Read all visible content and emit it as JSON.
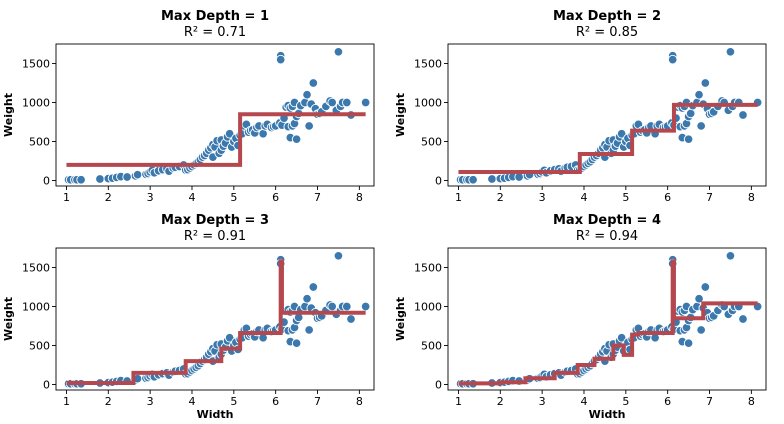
{
  "chart_data": [
    {
      "type": "scatter",
      "title": "Max Depth = 1",
      "subtitle": "R² = 0.71",
      "xlabel": "",
      "ylabel": "Weight",
      "xlim": [
        0.75,
        8.35
      ],
      "ylim": [
        -70,
        1750
      ],
      "xticks": [
        1,
        2,
        3,
        4,
        5,
        6,
        7,
        8
      ],
      "yticks": [
        0,
        500,
        1000,
        1500
      ],
      "step_fit": {
        "x": [
          1.0,
          5.15,
          5.15,
          8.15
        ],
        "y": [
          200,
          200,
          850,
          850
        ]
      }
    },
    {
      "type": "scatter",
      "title": "Max Depth = 2",
      "subtitle": "R² = 0.85",
      "xlabel": "",
      "ylabel": "Weight",
      "xlim": [
        0.75,
        8.35
      ],
      "ylim": [
        -70,
        1750
      ],
      "xticks": [
        1,
        2,
        3,
        4,
        5,
        6,
        7,
        8
      ],
      "yticks": [
        0,
        500,
        1000,
        1500
      ],
      "step_fit": {
        "x": [
          1.0,
          3.9,
          3.9,
          5.15,
          5.15,
          6.15,
          6.15,
          8.15
        ],
        "y": [
          110,
          110,
          340,
          340,
          640,
          640,
          970,
          970
        ]
      }
    },
    {
      "type": "scatter",
      "title": "Max Depth = 3",
      "subtitle": "R² = 0.91",
      "xlabel": "",
      "ylabel": "Weight",
      "xlim": [
        0.75,
        8.35
      ],
      "ylim": [
        -70,
        1750
      ],
      "xticks": [
        1,
        2,
        3,
        4,
        5,
        6,
        7,
        8
      ],
      "yticks": [
        0,
        500,
        1000,
        1500
      ],
      "step_fit": {
        "x": [
          1.0,
          2.6,
          2.6,
          3.85,
          3.85,
          4.7,
          4.7,
          5.15,
          5.15,
          6.12,
          6.12,
          6.15,
          6.15,
          8.15
        ],
        "y": [
          20,
          20,
          150,
          150,
          300,
          300,
          460,
          460,
          660,
          660,
          1580,
          1580,
          920,
          920
        ]
      }
    },
    {
      "type": "scatter",
      "title": "Max Depth = 4",
      "subtitle": "R² = 0.94",
      "xlabel": "Width",
      "ylabel": "Weight",
      "xlim": [
        0.75,
        8.35
      ],
      "ylim": [
        -70,
        1750
      ],
      "xticks": [
        1,
        2,
        3,
        4,
        5,
        6,
        7,
        8
      ],
      "yticks": [
        0,
        500,
        1000,
        1500
      ],
      "step_fit": {
        "x": [
          1.0,
          2.0,
          2.0,
          2.6,
          2.6,
          3.3,
          3.3,
          3.85,
          3.85,
          4.25,
          4.25,
          4.7,
          4.7,
          4.95,
          4.95,
          5.15,
          5.15,
          5.3,
          5.3,
          6.12,
          6.12,
          6.15,
          6.15,
          6.85,
          6.85,
          8.15
        ],
        "y": [
          15,
          15,
          30,
          30,
          80,
          80,
          150,
          150,
          250,
          250,
          330,
          330,
          500,
          500,
          380,
          380,
          640,
          640,
          660,
          660,
          1580,
          1580,
          850,
          850,
          1040,
          1040
        ]
      }
    }
  ],
  "scatter_points": [
    [
      1.05,
      10
    ],
    [
      1.1,
      10
    ],
    [
      1.2,
      10
    ],
    [
      1.25,
      10
    ],
    [
      1.35,
      10
    ],
    [
      1.8,
      20
    ],
    [
      2.0,
      25
    ],
    [
      2.1,
      30
    ],
    [
      2.2,
      40
    ],
    [
      2.3,
      50
    ],
    [
      2.45,
      45
    ],
    [
      2.65,
      60
    ],
    [
      2.7,
      75
    ],
    [
      2.9,
      80
    ],
    [
      2.95,
      90
    ],
    [
      3.0,
      110
    ],
    [
      3.05,
      130
    ],
    [
      3.1,
      100
    ],
    [
      3.2,
      125
    ],
    [
      3.3,
      140
    ],
    [
      3.4,
      150
    ],
    [
      3.45,
      120
    ],
    [
      3.55,
      160
    ],
    [
      3.6,
      170
    ],
    [
      3.7,
      180
    ],
    [
      3.8,
      200
    ],
    [
      3.85,
      135
    ],
    [
      3.9,
      140
    ],
    [
      3.95,
      160
    ],
    [
      4.0,
      180
    ],
    [
      4.05,
      200
    ],
    [
      4.1,
      220
    ],
    [
      4.15,
      240
    ],
    [
      4.2,
      270
    ],
    [
      4.25,
      300
    ],
    [
      4.3,
      320
    ],
    [
      4.35,
      350
    ],
    [
      4.4,
      390
    ],
    [
      4.45,
      420
    ],
    [
      4.5,
      300
    ],
    [
      4.5,
      460
    ],
    [
      4.55,
      430
    ],
    [
      4.6,
      510
    ],
    [
      4.65,
      350
    ],
    [
      4.7,
      390
    ],
    [
      4.7,
      520
    ],
    [
      4.75,
      440
    ],
    [
      4.8,
      480
    ],
    [
      4.85,
      560
    ],
    [
      4.9,
      600
    ],
    [
      4.95,
      430
    ],
    [
      5.0,
      500
    ],
    [
      5.05,
      540
    ],
    [
      5.1,
      450
    ],
    [
      5.15,
      580
    ],
    [
      5.2,
      600
    ],
    [
      5.25,
      700
    ],
    [
      5.3,
      720
    ],
    [
      5.35,
      620
    ],
    [
      5.4,
      640
    ],
    [
      5.45,
      650
    ],
    [
      5.5,
      610
    ],
    [
      5.55,
      680
    ],
    [
      5.6,
      700
    ],
    [
      5.7,
      600
    ],
    [
      5.75,
      700
    ],
    [
      5.8,
      720
    ],
    [
      5.9,
      680
    ],
    [
      5.95,
      690
    ],
    [
      6.0,
      700
    ],
    [
      6.1,
      740
    ],
    [
      6.12,
      1600
    ],
    [
      6.12,
      1550
    ],
    [
      6.15,
      710
    ],
    [
      6.2,
      800
    ],
    [
      6.25,
      940
    ],
    [
      6.3,
      960
    ],
    [
      6.35,
      930
    ],
    [
      6.4,
      950
    ],
    [
      6.45,
      1000
    ],
    [
      6.3,
      690
    ],
    [
      6.35,
      550
    ],
    [
      6.4,
      700
    ],
    [
      6.45,
      730
    ],
    [
      6.5,
      820
    ],
    [
      6.55,
      860
    ],
    [
      6.5,
      530
    ],
    [
      6.6,
      960
    ],
    [
      6.7,
      1000
    ],
    [
      6.75,
      1100
    ],
    [
      6.8,
      700
    ],
    [
      6.85,
      980
    ],
    [
      6.9,
      1250
    ],
    [
      6.95,
      920
    ],
    [
      7.0,
      850
    ],
    [
      7.05,
      860
    ],
    [
      7.1,
      880
    ],
    [
      7.2,
      950
    ],
    [
      7.3,
      1020
    ],
    [
      7.35,
      1000
    ],
    [
      7.45,
      900
    ],
    [
      7.5,
      1650
    ],
    [
      7.55,
      950
    ],
    [
      7.6,
      1000
    ],
    [
      7.7,
      1000
    ],
    [
      7.8,
      840
    ],
    [
      8.15,
      1000
    ]
  ],
  "colors": {
    "points": "#3a78ad",
    "point_edge": "#ffffff",
    "fit_line": "#b5484f",
    "axis": "#000000"
  }
}
